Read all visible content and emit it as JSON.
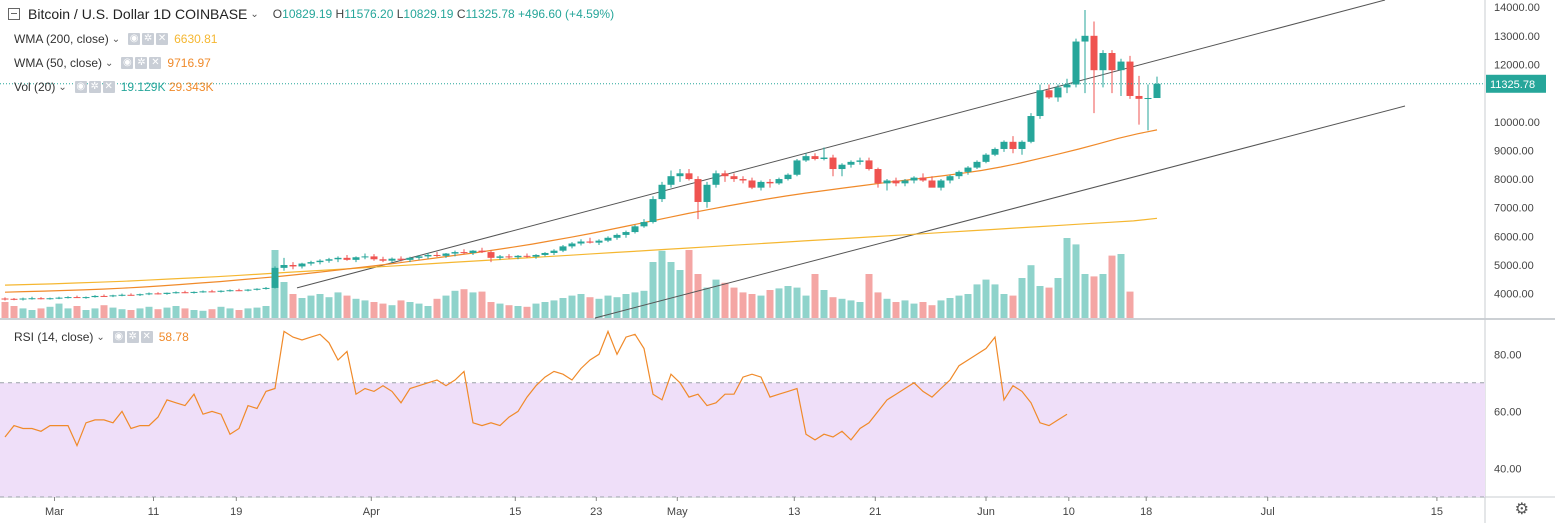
{
  "header": {
    "symbol_title": "Bitcoin / U.S. Dollar  1D  COINBASE",
    "ohlc": {
      "o_label": "O",
      "o": "10829.19",
      "h_label": "H",
      "h": "11576.20",
      "l_label": "L",
      "l": "10829.19",
      "c_label": "C",
      "c": "11325.78",
      "change": "+496.60 (+4.59%)"
    }
  },
  "indicators": {
    "wma200": {
      "label": "WMA (200, close)",
      "value": "6630.81",
      "color": "#f5b731"
    },
    "wma50": {
      "label": "WMA (50, close)",
      "value": "9716.97",
      "color": "#f08a2a"
    },
    "vol": {
      "label": "Vol (20)",
      "value1": "19.129K",
      "value2": "29.343K",
      "color1": "#26a69a",
      "color2": "#f08a2a"
    },
    "rsi": {
      "label": "RSI (14, close)",
      "value": "58.78",
      "color": "#f08a2a"
    }
  },
  "colors": {
    "up": "#26a69a",
    "down": "#ef5350",
    "rsi_band": "#efdff9",
    "price_line": "#26a69a"
  },
  "price_tag": "11325.78",
  "icons": [
    "collapse-icon",
    "chevron-down-icon",
    "eye-icon",
    "gear-icon",
    "close-icon",
    "settings-gear-icon"
  ],
  "chart_data": {
    "type": "candlestick",
    "price_axis": {
      "ticks": [
        "4000.00",
        "5000.00",
        "6000.00",
        "7000.00",
        "8000.00",
        "9000.00",
        "10000.00",
        "11000.00",
        "12000.00",
        "13000.00",
        "14000.00"
      ],
      "range": [
        3150,
        14250
      ]
    },
    "rsi_axis": {
      "ticks": [
        "40.00",
        "60.00",
        "80.00"
      ],
      "range": [
        30,
        92
      ],
      "bands": [
        30,
        70
      ]
    },
    "x_labels": [
      "Mar",
      "11",
      "19",
      "Apr",
      "15",
      "23",
      "May",
      "13",
      "21",
      "Jun",
      "10",
      "18",
      "Jul",
      "15"
    ],
    "candles": [
      [
        3830,
        3870,
        3760,
        3820
      ],
      [
        3820,
        3850,
        3770,
        3800
      ],
      [
        3800,
        3860,
        3760,
        3830
      ],
      [
        3830,
        3890,
        3790,
        3840
      ],
      [
        3840,
        3880,
        3800,
        3820
      ],
      [
        3820,
        3860,
        3790,
        3840
      ],
      [
        3840,
        3890,
        3810,
        3860
      ],
      [
        3860,
        3910,
        3830,
        3880
      ],
      [
        3880,
        3930,
        3850,
        3860
      ],
      [
        3860,
        3900,
        3820,
        3880
      ],
      [
        3880,
        3950,
        3860,
        3920
      ],
      [
        3920,
        3970,
        3890,
        3910
      ],
      [
        3910,
        3960,
        3880,
        3940
      ],
      [
        3940,
        4000,
        3910,
        3960
      ],
      [
        3960,
        4010,
        3930,
        3950
      ],
      [
        3950,
        4000,
        3920,
        3980
      ],
      [
        3980,
        4040,
        3950,
        4010
      ],
      [
        4010,
        4050,
        3970,
        3990
      ],
      [
        3990,
        4040,
        3960,
        4030
      ],
      [
        4030,
        4080,
        4000,
        4050
      ],
      [
        4050,
        4100,
        4020,
        4030
      ],
      [
        4030,
        4080,
        4000,
        4060
      ],
      [
        4060,
        4110,
        4030,
        4080
      ],
      [
        4080,
        4130,
        4050,
        4070
      ],
      [
        4070,
        4120,
        4040,
        4100
      ],
      [
        4100,
        4150,
        4070,
        4120
      ],
      [
        4120,
        4170,
        4090,
        4110
      ],
      [
        4110,
        4160,
        4080,
        4140
      ],
      [
        4140,
        4190,
        4110,
        4170
      ],
      [
        4170,
        4230,
        4140,
        4200
      ],
      [
        4200,
        4950,
        4180,
        4900
      ],
      [
        4900,
        5250,
        4800,
        5000
      ],
      [
        5000,
        5100,
        4850,
        4950
      ],
      [
        4950,
        5080,
        4880,
        5050
      ],
      [
        5050,
        5150,
        4980,
        5100
      ],
      [
        5100,
        5200,
        5020,
        5150
      ],
      [
        5150,
        5250,
        5080,
        5200
      ],
      [
        5200,
        5300,
        5100,
        5250
      ],
      [
        5250,
        5350,
        5150,
        5180
      ],
      [
        5180,
        5300,
        5100,
        5270
      ],
      [
        5270,
        5400,
        5200,
        5300
      ],
      [
        5300,
        5380,
        5150,
        5200
      ],
      [
        5200,
        5290,
        5100,
        5150
      ],
      [
        5150,
        5260,
        5080,
        5220
      ],
      [
        5220,
        5300,
        5120,
        5180
      ],
      [
        5180,
        5290,
        5100,
        5250
      ],
      [
        5250,
        5350,
        5180,
        5300
      ],
      [
        5300,
        5420,
        5220,
        5350
      ],
      [
        5350,
        5460,
        5280,
        5320
      ],
      [
        5320,
        5420,
        5250,
        5400
      ],
      [
        5400,
        5500,
        5300,
        5450
      ],
      [
        5450,
        5550,
        5380,
        5420
      ],
      [
        5420,
        5520,
        5350,
        5500
      ],
      [
        5500,
        5600,
        5420,
        5450
      ],
      [
        5450,
        5520,
        5100,
        5250
      ],
      [
        5250,
        5350,
        5180,
        5300
      ],
      [
        5300,
        5380,
        5220,
        5270
      ],
      [
        5270,
        5350,
        5200,
        5320
      ],
      [
        5320,
        5400,
        5250,
        5290
      ],
      [
        5290,
        5380,
        5220,
        5350
      ],
      [
        5350,
        5450,
        5300,
        5420
      ],
      [
        5420,
        5550,
        5350,
        5500
      ],
      [
        5500,
        5700,
        5450,
        5650
      ],
      [
        5650,
        5800,
        5580,
        5750
      ],
      [
        5750,
        5900,
        5680,
        5820
      ],
      [
        5820,
        5950,
        5750,
        5780
      ],
      [
        5780,
        5900,
        5700,
        5850
      ],
      [
        5850,
        6000,
        5800,
        5950
      ],
      [
        5950,
        6100,
        5880,
        6050
      ],
      [
        6050,
        6200,
        5950,
        6150
      ],
      [
        6150,
        6400,
        6100,
        6350
      ],
      [
        6350,
        6600,
        6300,
        6500
      ],
      [
        6500,
        7400,
        6450,
        7300
      ],
      [
        7300,
        7900,
        7200,
        7800
      ],
      [
        7800,
        8300,
        7700,
        8100
      ],
      [
        8100,
        8350,
        7900,
        8200
      ],
      [
        8200,
        8350,
        7950,
        8000
      ],
      [
        8000,
        8100,
        6600,
        7200
      ],
      [
        7200,
        7900,
        7000,
        7800
      ],
      [
        7800,
        8300,
        7700,
        8200
      ],
      [
        8200,
        8300,
        7900,
        8100
      ],
      [
        8100,
        8200,
        7900,
        8000
      ],
      [
        8000,
        8100,
        7850,
        7950
      ],
      [
        7950,
        8050,
        7650,
        7700
      ],
      [
        7700,
        7950,
        7600,
        7900
      ],
      [
        7900,
        8000,
        7700,
        7850
      ],
      [
        7850,
        8050,
        7800,
        8000
      ],
      [
        8000,
        8200,
        7950,
        8150
      ],
      [
        8150,
        8700,
        8100,
        8650
      ],
      [
        8650,
        8900,
        8600,
        8800
      ],
      [
        8800,
        8900,
        8650,
        8700
      ],
      [
        8700,
        9100,
        8650,
        8750
      ],
      [
        8750,
        8850,
        8100,
        8350
      ],
      [
        8350,
        8550,
        8100,
        8500
      ],
      [
        8500,
        8650,
        8400,
        8600
      ],
      [
        8600,
        8750,
        8500,
        8650
      ],
      [
        8650,
        8750,
        8300,
        8350
      ],
      [
        8350,
        8400,
        7700,
        7850
      ],
      [
        7850,
        8000,
        7600,
        7950
      ],
      [
        7950,
        8050,
        7750,
        7850
      ],
      [
        7850,
        8000,
        7750,
        7950
      ],
      [
        7950,
        8100,
        7850,
        8050
      ],
      [
        8050,
        8200,
        7900,
        7950
      ],
      [
        7950,
        8100,
        7800,
        7700
      ],
      [
        7700,
        8000,
        7600,
        7950
      ],
      [
        7950,
        8150,
        7850,
        8100
      ],
      [
        8100,
        8300,
        8000,
        8250
      ],
      [
        8250,
        8450,
        8150,
        8400
      ],
      [
        8400,
        8650,
        8350,
        8600
      ],
      [
        8600,
        8900,
        8550,
        8850
      ],
      [
        8850,
        9100,
        8800,
        9050
      ],
      [
        9050,
        9350,
        8950,
        9300
      ],
      [
        9300,
        9500,
        8900,
        9050
      ],
      [
        9050,
        9350,
        8850,
        9300
      ],
      [
        9300,
        10300,
        9250,
        10200
      ],
      [
        10200,
        11300,
        10100,
        11100
      ],
      [
        11100,
        11300,
        10800,
        10850
      ],
      [
        10850,
        11300,
        10700,
        11200
      ],
      [
        11200,
        11500,
        11000,
        11300
      ],
      [
        11300,
        12900,
        11200,
        12800
      ],
      [
        12800,
        13900,
        11000,
        13000
      ],
      [
        13000,
        13500,
        10300,
        11800
      ],
      [
        11800,
        12500,
        11200,
        12400
      ],
      [
        12400,
        12500,
        11000,
        11800
      ],
      [
        11800,
        12200,
        10900,
        12100
      ],
      [
        12100,
        12300,
        10800,
        10900
      ],
      [
        10900,
        11600,
        9900,
        10800
      ],
      [
        10800,
        11300,
        9700,
        10829
      ],
      [
        10829,
        11576,
        10829,
        11326
      ]
    ],
    "wma50": [
      4050,
      4070,
      4090,
      4110,
      4130,
      4160,
      4190,
      4230,
      4270,
      4320,
      4370,
      4420,
      4480,
      4540,
      4600,
      4670,
      4740,
      4820,
      4900,
      4980,
      5060,
      5150,
      5240,
      5330,
      5420,
      5520,
      5620,
      5730,
      5850,
      5970,
      6100,
      6240,
      6380,
      6520,
      6660,
      6800,
      6930,
      7060,
      7180,
      7300,
      7410,
      7510,
      7600,
      7690,
      7780,
      7870,
      7950,
      8030,
      8110,
      8200,
      8300,
      8420,
      8560,
      8720,
      8880,
      9050,
      9230,
      9420,
      9580,
      9717
    ],
    "wma200": [
      4300,
      4320,
      4340,
      4370,
      4400,
      4430,
      4470,
      4510,
      4550,
      4590,
      4640,
      4690,
      4740,
      4790,
      4840,
      4890,
      4940,
      4990,
      5040,
      5090,
      5140,
      5190,
      5240,
      5290,
      5340,
      5390,
      5440,
      5490,
      5540,
      5590,
      5640,
      5690,
      5740,
      5790,
      5840,
      5890,
      5940,
      5990,
      6040,
      6090,
      6140,
      6190,
      6240,
      6290,
      6340,
      6390,
      6440,
      6490,
      6540,
      6631
    ],
    "volume": [
      0.2,
      0.15,
      0.12,
      0.1,
      0.12,
      0.14,
      0.18,
      0.12,
      0.15,
      0.1,
      0.12,
      0.16,
      0.13,
      0.11,
      0.1,
      0.12,
      0.14,
      0.11,
      0.13,
      0.15,
      0.12,
      0.1,
      0.09,
      0.11,
      0.14,
      0.12,
      0.1,
      0.12,
      0.13,
      0.15,
      0.85,
      0.45,
      0.3,
      0.25,
      0.28,
      0.3,
      0.26,
      0.32,
      0.28,
      0.24,
      0.22,
      0.2,
      0.18,
      0.16,
      0.22,
      0.2,
      0.18,
      0.15,
      0.24,
      0.28,
      0.34,
      0.36,
      0.32,
      0.33,
      0.2,
      0.18,
      0.16,
      0.15,
      0.14,
      0.18,
      0.2,
      0.22,
      0.25,
      0.28,
      0.3,
      0.26,
      0.24,
      0.28,
      0.26,
      0.3,
      0.32,
      0.34,
      0.7,
      0.84,
      0.7,
      0.6,
      0.85,
      0.55,
      0.38,
      0.48,
      0.44,
      0.38,
      0.32,
      0.3,
      0.28,
      0.35,
      0.37,
      0.4,
      0.38,
      0.28,
      0.55,
      0.35,
      0.26,
      0.24,
      0.22,
      0.2,
      0.55,
      0.32,
      0.24,
      0.2,
      0.22,
      0.18,
      0.2,
      0.16,
      0.22,
      0.25,
      0.28,
      0.3,
      0.42,
      0.48,
      0.42,
      0.3,
      0.28,
      0.5,
      0.66,
      0.4,
      0.38,
      0.5,
      1.0,
      0.92,
      0.55,
      0.52,
      0.55,
      0.78,
      0.8,
      0.33
    ],
    "rsi": [
      51,
      55,
      54,
      54,
      53,
      55,
      55,
      55,
      48,
      56,
      57,
      57,
      56,
      60,
      54,
      55,
      55,
      58,
      64,
      63,
      62,
      66,
      59,
      60,
      59,
      52,
      54,
      62,
      61,
      67,
      68,
      88,
      86,
      85,
      86,
      87,
      84,
      78,
      81,
      66,
      68,
      67,
      69,
      67,
      63,
      68,
      69,
      70,
      71,
      69,
      71,
      74,
      56,
      55,
      56,
      55,
      58,
      60,
      65,
      69,
      72,
      74,
      73,
      71,
      75,
      78,
      80,
      88,
      80,
      86,
      87,
      82,
      66,
      64,
      73,
      70,
      65,
      66,
      62,
      63,
      66,
      66,
      72,
      73,
      72,
      65,
      66,
      67,
      68,
      52,
      50,
      52,
      51,
      53,
      50,
      54,
      56,
      60,
      64,
      66,
      68,
      70,
      67,
      65,
      68,
      71,
      76,
      78,
      80,
      82,
      86,
      64,
      69,
      67,
      63,
      56,
      55,
      57,
      59
    ]
  }
}
